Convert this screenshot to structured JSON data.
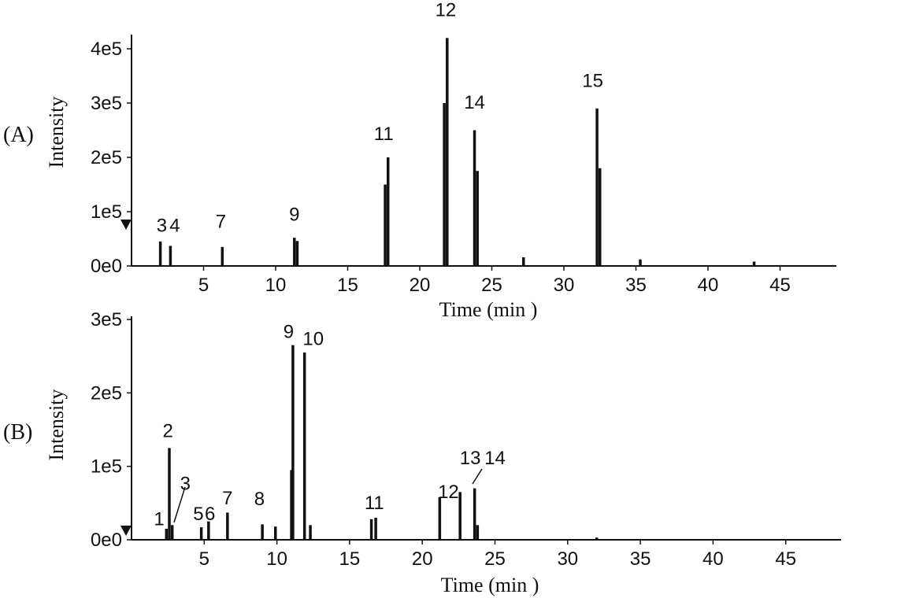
{
  "chart_data": [
    {
      "type": "line",
      "panel_label": "(A)",
      "xlabel": "Time (min )",
      "ylabel": "Intensity",
      "xlim": [
        0,
        49
      ],
      "ylim": [
        0,
        430000
      ],
      "x_ticks": [
        5,
        10,
        15,
        20,
        25,
        30,
        35,
        40,
        45
      ],
      "x_tick_labels": [
        "5",
        "10",
        "15",
        "20",
        "25",
        "30",
        "35",
        "40",
        "45"
      ],
      "y_ticks": [
        0,
        100000,
        200000,
        300000,
        400000
      ],
      "y_tick_labels": [
        "0e0",
        "1e5",
        "2e5",
        "3e5",
        "4e5"
      ],
      "peaks": [
        {
          "x": 2.0,
          "y": 45000
        },
        {
          "x": 2.7,
          "y": 37000
        },
        {
          "x": 6.3,
          "y": 35000
        },
        {
          "x": 11.3,
          "y": 52000
        },
        {
          "x": 11.5,
          "y": 46000
        },
        {
          "x": 17.6,
          "y": 150000
        },
        {
          "x": 17.8,
          "y": 200000
        },
        {
          "x": 21.7,
          "y": 300000
        },
        {
          "x": 21.9,
          "y": 420000
        },
        {
          "x": 23.8,
          "y": 250000
        },
        {
          "x": 24.0,
          "y": 175000
        },
        {
          "x": 32.3,
          "y": 290000
        },
        {
          "x": 32.5,
          "y": 180000
        },
        {
          "x": 27.2,
          "y": 16000
        },
        {
          "x": 35.3,
          "y": 12000
        },
        {
          "x": 43.2,
          "y": 8000
        }
      ],
      "annotations": [
        {
          "label": "3",
          "x": 2.1,
          "y": 63000
        },
        {
          "label": "4",
          "x": 3.0,
          "y": 63000
        },
        {
          "label": "7",
          "x": 6.2,
          "y": 70000
        },
        {
          "label": "9",
          "x": 11.3,
          "y": 83000
        },
        {
          "label": "11",
          "x": 17.5,
          "y": 232000
        },
        {
          "label": "12",
          "x": 21.8,
          "y": 460000
        },
        {
          "label": "14",
          "x": 23.8,
          "y": 290000
        },
        {
          "label": "15",
          "x": 32.0,
          "y": 330000
        }
      ]
    },
    {
      "type": "line",
      "panel_label": "(B)",
      "xlabel": "Time (min )",
      "ylabel": "Intensity",
      "xlim": [
        0,
        49
      ],
      "ylim": [
        0,
        310000
      ],
      "x_ticks": [
        5,
        10,
        15,
        20,
        25,
        30,
        35,
        40,
        45
      ],
      "x_tick_labels": [
        "5",
        "10",
        "15",
        "20",
        "25",
        "30",
        "35",
        "40",
        "45"
      ],
      "y_ticks": [
        0,
        100000,
        200000,
        300000
      ],
      "y_tick_labels": [
        "0e0",
        "1e5",
        "2e5",
        "3e5"
      ],
      "peaks": [
        {
          "x": 2.4,
          "y": 15000
        },
        {
          "x": 2.6,
          "y": 125000
        },
        {
          "x": 2.8,
          "y": 20000
        },
        {
          "x": 4.8,
          "y": 17000
        },
        {
          "x": 5.3,
          "y": 25000
        },
        {
          "x": 6.6,
          "y": 37000
        },
        {
          "x": 9.0,
          "y": 21000
        },
        {
          "x": 9.9,
          "y": 18000
        },
        {
          "x": 11.0,
          "y": 95000
        },
        {
          "x": 11.1,
          "y": 265000
        },
        {
          "x": 11.9,
          "y": 255000
        },
        {
          "x": 12.3,
          "y": 20000
        },
        {
          "x": 16.5,
          "y": 28000
        },
        {
          "x": 16.8,
          "y": 30000
        },
        {
          "x": 21.2,
          "y": 58000
        },
        {
          "x": 22.6,
          "y": 65000
        },
        {
          "x": 23.6,
          "y": 70000
        },
        {
          "x": 23.8,
          "y": 20000
        },
        {
          "x": 32.0,
          "y": 3000
        }
      ],
      "annotations": [
        {
          "label": "1",
          "x": 1.9,
          "y": 20000
        },
        {
          "label": "2",
          "x": 2.5,
          "y": 140000
        },
        {
          "label": "3",
          "x": 3.7,
          "y": 68000
        },
        {
          "label": "5",
          "x": 4.6,
          "y": 27000
        },
        {
          "label": "6",
          "x": 5.4,
          "y": 27000
        },
        {
          "label": "7",
          "x": 6.6,
          "y": 48000
        },
        {
          "label": "8",
          "x": 8.8,
          "y": 47000
        },
        {
          "label": "9",
          "x": 10.8,
          "y": 275000
        },
        {
          "label": "10",
          "x": 12.5,
          "y": 265000
        },
        {
          "label": "11",
          "x": 16.7,
          "y": 42000
        },
        {
          "label": "12",
          "x": 21.8,
          "y": 57000
        },
        {
          "label": "13",
          "x": 23.3,
          "y": 103000
        },
        {
          "label": "14",
          "x": 25.0,
          "y": 103000
        }
      ]
    }
  ]
}
